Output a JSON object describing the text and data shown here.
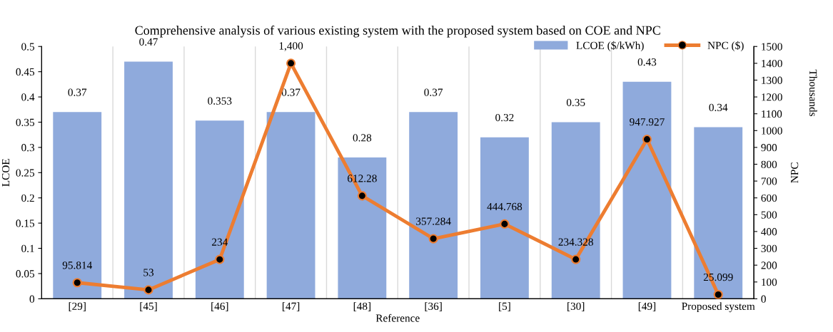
{
  "chart_data": {
    "type": "bar",
    "title": "Comprehensive analysis of various existing system with the proposed system based on COE and NPC",
    "xlabel": "Reference",
    "ylabel": "LCOE",
    "y2label": "NPC",
    "annotations": [
      "Thousands"
    ],
    "categories": [
      "[29]",
      "[45]",
      "[46]",
      "[47]",
      "[48]",
      "[36]",
      "[5]",
      "[30]",
      "[49]",
      "Proposed system"
    ],
    "series": [
      {
        "name": "LCOE ($/kWh)",
        "color": "#8faadc",
        "values": [
          0.37,
          0.47,
          0.353,
          0.37,
          0.28,
          0.37,
          0.32,
          0.35,
          0.43,
          0.34
        ],
        "data_labels": true
      },
      {
        "name": "NPC ($)",
        "type": "line",
        "axis": "y2",
        "color": "#ed7d31",
        "marker": "circle",
        "values": [
          95.814,
          53,
          234,
          1400,
          612.28,
          357.284,
          444.768,
          234.328,
          947.927,
          25.099
        ],
        "value_labels": [
          "95.814",
          "53",
          "234",
          "1,400",
          "612.28",
          "357.284",
          "444.768",
          "234.328",
          "947.927",
          "25.099"
        ]
      }
    ],
    "ylim": [
      0,
      0.5
    ],
    "yticks": [
      0,
      0.05,
      0.1,
      0.15,
      0.2,
      0.25,
      0.3,
      0.35,
      0.4,
      0.45,
      0.5
    ],
    "y2lim": [
      0,
      1500
    ],
    "y2ticks": [
      0,
      100,
      200,
      300,
      400,
      500,
      600,
      700,
      800,
      900,
      1000,
      1100,
      1200,
      1300,
      1400,
      1500
    ],
    "grid": "x",
    "legend": "top right"
  }
}
